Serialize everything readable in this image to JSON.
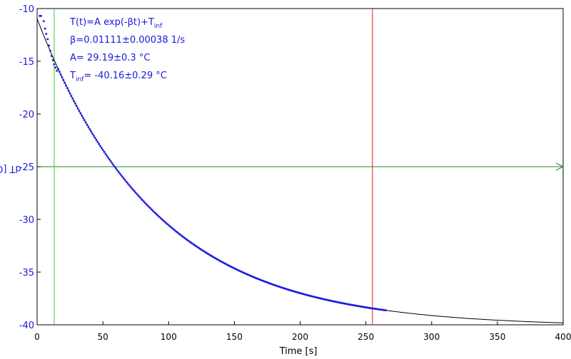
{
  "chart_data": {
    "type": "scatter",
    "xlabel": "Time [s]",
    "ylabel": "dT [C]",
    "xlim": [
      0,
      400
    ],
    "ylim": [
      -40,
      -10
    ],
    "xticks": [
      "0",
      "50",
      "100",
      "150",
      "200",
      "250",
      "300",
      "350",
      "400"
    ],
    "yticks": [
      "-10",
      "-15",
      "-20",
      "-25",
      "-30",
      "-35",
      "-40"
    ],
    "fit": {
      "model": "T(t)=A exp(-βt)+T_inf",
      "A": 29.19,
      "beta": 0.01111,
      "T_inf": -40.16,
      "x_range": [
        0,
        400
      ]
    },
    "points": {
      "x_range": [
        0,
        265
      ],
      "early": [
        [
          2,
          -10.7
        ],
        [
          3,
          -10.7
        ],
        [
          5,
          -11.2
        ],
        [
          6,
          -11.9
        ],
        [
          7,
          -12.4
        ],
        [
          8,
          -12.9
        ],
        [
          9,
          -13.5
        ],
        [
          10,
          -14.0
        ],
        [
          11,
          -14.5
        ],
        [
          12,
          -14.9
        ],
        [
          13,
          -15.3
        ],
        [
          14,
          -15.6
        ],
        [
          15,
          -15.9
        ]
      ]
    },
    "reference_lines": {
      "vertical_green_x": 13,
      "vertical_red_x": 255,
      "horizontal_green_y": -25
    },
    "annotations": {
      "model": "T(t)=A exp(-βt)+T",
      "model_sub": "inf",
      "beta": "β=0.01111±0.00038 1/s",
      "A": "A= 29.19±0.3 °C",
      "tinf_main": "T",
      "tinf_sub": "inf",
      "tinf_value": "= -40.16±0.29 °C"
    },
    "colors": {
      "points": "#1a1adc",
      "fit": "#000000",
      "vertical_green": "#33cc33",
      "vertical_red": "#e02020",
      "horizontal_green": "#228b22",
      "tick_y": "#1a1adc"
    }
  }
}
